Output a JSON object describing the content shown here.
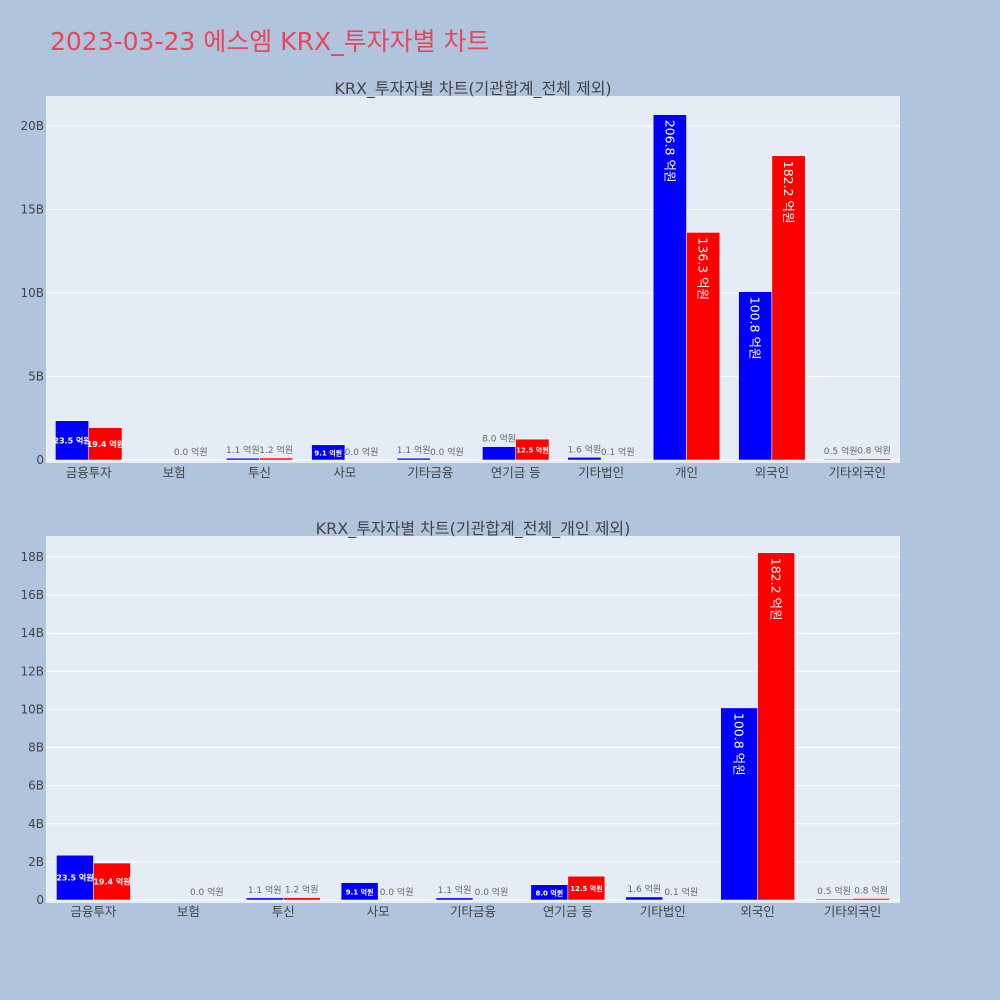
{
  "page": {
    "title": "2023-03-23 에스엠 KRX_투자자별 차트"
  },
  "colors": {
    "background": "#b0c4de",
    "plot_background": "#e5ecf6",
    "title": "#e8455a",
    "series_blue": "#0000ff",
    "series_red": "#ff0000"
  },
  "chart_data": [
    {
      "type": "bar",
      "title": "KRX_투자자별 차트(기관합계_전체 제외)",
      "categories": [
        "금융투자",
        "보험",
        "투신",
        "사모",
        "기타금융",
        "연기금 등",
        "기타법인",
        "개인",
        "외국인",
        "기타외국인"
      ],
      "series": [
        {
          "color": "#0000ff",
          "values": [
            2.35,
            0.0,
            0.11,
            0.91,
            0.11,
            0.8,
            0.16,
            20.68,
            10.08,
            0.05
          ]
        },
        {
          "color": "#ff0000",
          "values": [
            1.94,
            0.0,
            0.12,
            0.0,
            0.0,
            1.25,
            0.01,
            13.63,
            18.22,
            0.08
          ]
        }
      ],
      "labels": [
        [
          "23.5 억원",
          "",
          "1.1 억원",
          "9.1 억원",
          "1.1 억원",
          "8.0 억원",
          "1.6 억원",
          "206.8 억원",
          "100.8 억원",
          "0.5 억원"
        ],
        [
          "19.4 억원",
          "0.0 억원",
          "1.2 억원",
          "0.0 억원",
          "0.0 억원",
          "12.5 억원",
          "0.1 억원",
          "136.3 억원",
          "182.2 억원",
          "0.8 억원"
        ]
      ],
      "yticks": [
        0,
        5,
        10,
        15,
        20
      ],
      "ytick_labels": [
        "0",
        "5B",
        "10B",
        "15B",
        "20B"
      ],
      "ylim": [
        0,
        21.8
      ],
      "grid": true
    },
    {
      "type": "bar",
      "title": "KRX_투자자별 차트(기관합계_전체_개인 제외)",
      "categories": [
        "금융투자",
        "보험",
        "투신",
        "사모",
        "기타금융",
        "연기금 등",
        "기타법인",
        "외국인",
        "기타외국인"
      ],
      "series": [
        {
          "color": "#0000ff",
          "values": [
            2.35,
            0.0,
            0.11,
            0.91,
            0.11,
            0.8,
            0.16,
            10.08,
            0.05
          ]
        },
        {
          "color": "#ff0000",
          "values": [
            1.94,
            0.0,
            0.12,
            0.0,
            0.0,
            1.25,
            0.01,
            18.22,
            0.08
          ]
        }
      ],
      "labels": [
        [
          "23.5 억원",
          "",
          "1.1 억원",
          "9.1 억원",
          "1.1 억원",
          "8.0 억원",
          "1.6 억원",
          "100.8 억원",
          "0.5 억원"
        ],
        [
          "19.4 억원",
          "0.0 억원",
          "1.2 억원",
          "0.0 억원",
          "0.0 억원",
          "12.5 억원",
          "0.1 억원",
          "182.2 억원",
          "0.8 억원"
        ]
      ],
      "yticks": [
        0,
        2,
        4,
        6,
        8,
        10,
        12,
        14,
        16,
        18
      ],
      "ytick_labels": [
        "0",
        "2B",
        "4B",
        "6B",
        "8B",
        "10B",
        "12B",
        "14B",
        "16B",
        "18B"
      ],
      "ylim": [
        0,
        19.1
      ],
      "grid": true
    }
  ]
}
